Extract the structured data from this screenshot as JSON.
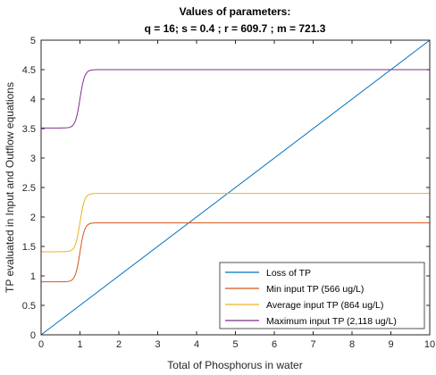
{
  "chart_data": {
    "type": "line",
    "title": "Values of parameters:",
    "subtitle": "q = 16; s = 0.4 ; r = 609.7 ; m = 721.3",
    "xlabel": "Total of Phosphorus in water",
    "ylabel": "TP evaluated in Input and Outflow equations",
    "xlim": [
      0,
      10
    ],
    "ylim": [
      0,
      5
    ],
    "xticks": [
      "0",
      "1",
      "2",
      "3",
      "4",
      "5",
      "6",
      "7",
      "8",
      "9",
      "10"
    ],
    "yticks": [
      "0",
      "0.5",
      "1",
      "1.5",
      "2",
      "2.5",
      "3",
      "3.5",
      "4",
      "4.5",
      "5"
    ],
    "grid": false,
    "legend_position": "bottom-right",
    "series": [
      {
        "name": "Loss of TP",
        "color": "#0072BD",
        "kind": "linear",
        "x": [
          0,
          10
        ],
        "y": [
          0,
          5
        ]
      },
      {
        "name": "Min input TP (566 ug/L)",
        "color": "#D95319",
        "kind": "sigmoid",
        "low": 0.9,
        "high": 1.9
      },
      {
        "name": "Average input TP (864 ug/L)",
        "color": "#EDB120",
        "kind": "sigmoid",
        "low": 1.41,
        "high": 2.4
      },
      {
        "name": "Maximum input TP (2,118 ug/L)",
        "color": "#7E2F8E",
        "kind": "sigmoid",
        "low": 3.51,
        "high": 4.5
      }
    ]
  }
}
